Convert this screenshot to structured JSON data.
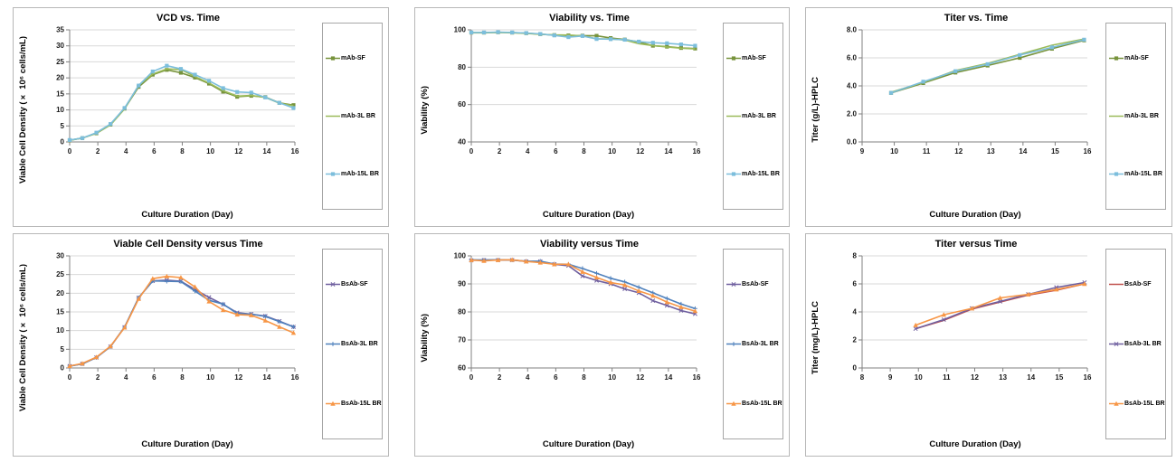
{
  "chart_data": [
    {
      "type": "line",
      "title": "VCD vs. Time",
      "xlabel": "Culture Duration (Day)",
      "ylabel": "Viable Cell Density (× 10⁶ cells/mL)",
      "x_axis": {
        "min": 0,
        "max": 16,
        "step": 2,
        "decimals": 0
      },
      "y_axis": {
        "min": 0,
        "max": 35,
        "step": 5,
        "decimals": 0
      },
      "grid": "horizontal",
      "legend_position": "right",
      "x": [
        0,
        0.9,
        1.9,
        2.9,
        3.9,
        4.9,
        5.9,
        6.9,
        7.9,
        8.9,
        9.9,
        10.9,
        11.9,
        12.9,
        13.9,
        14.9,
        15.9
      ],
      "series": [
        {
          "name": "mAb-SF",
          "color": "#77933C",
          "marker": "square",
          "values": [
            0.5,
            1.2,
            2.7,
            5.4,
            10.4,
            17.2,
            21.0,
            22.5,
            21.6,
            20.1,
            18.2,
            15.7,
            14.1,
            14.4,
            14.0,
            12.2,
            11.5
          ]
        },
        {
          "name": "mAb-3L BR",
          "color": "#9BBB59",
          "marker": "none",
          "values": [
            0.5,
            1.2,
            2.7,
            5.3,
            10.3,
            17.7,
            21.2,
            22.8,
            22.6,
            20.4,
            18.4,
            16.0,
            14.3,
            14.5,
            13.9,
            12.1,
            11.3
          ]
        },
        {
          "name": "mAb-15L BR",
          "color": "#7CBEDC",
          "marker": "square",
          "values": [
            0.6,
            1.2,
            2.9,
            5.6,
            10.6,
            17.6,
            22.0,
            23.8,
            22.8,
            21.0,
            19.1,
            16.8,
            15.6,
            15.4,
            13.9,
            12.2,
            10.6
          ]
        }
      ]
    },
    {
      "type": "line",
      "title": "Viability vs. Time",
      "xlabel": "Culture Duration (Day)",
      "ylabel": "Viability (%)",
      "x_axis": {
        "min": 0,
        "max": 16,
        "step": 2,
        "decimals": 0
      },
      "y_axis": {
        "min": 40,
        "max": 100,
        "step": 20,
        "decimals": 0
      },
      "grid": "horizontal",
      "legend_position": "right",
      "x": [
        0,
        0.9,
        1.9,
        2.9,
        3.9,
        4.9,
        5.9,
        6.9,
        7.9,
        8.9,
        9.9,
        10.9,
        11.9,
        12.9,
        13.9,
        14.9,
        15.9
      ],
      "series": [
        {
          "name": "mAb-SF",
          "color": "#77933C",
          "marker": "square",
          "values": [
            98.5,
            98.5,
            98.7,
            98.5,
            98.2,
            97.7,
            97.2,
            97.0,
            96.9,
            96.8,
            95.6,
            94.8,
            93.5,
            91.5,
            91.0,
            90.3,
            90.0
          ]
        },
        {
          "name": "mAb-3L BR",
          "color": "#9BBB59",
          "marker": "none",
          "values": [
            98.4,
            98.4,
            98.6,
            98.4,
            98.1,
            97.6,
            97.3,
            97.2,
            96.8,
            95.2,
            95.1,
            94.6,
            92.6,
            91.6,
            90.8,
            90.2,
            89.8
          ]
        },
        {
          "name": "mAb-15L BR",
          "color": "#7CBEDC",
          "marker": "square",
          "values": [
            98.6,
            98.6,
            98.8,
            98.6,
            98.3,
            97.8,
            97.0,
            96.1,
            96.7,
            95.1,
            95.0,
            94.7,
            93.7,
            93.1,
            92.8,
            92.2,
            91.5
          ]
        }
      ]
    },
    {
      "type": "line",
      "title": "Titer vs. Time",
      "xlabel": "Culture Duration (Day)",
      "ylabel": "Titer (g/L)-HPLC",
      "x_axis": {
        "min": 9,
        "max": 16,
        "step": 1,
        "decimals": 0
      },
      "y_axis": {
        "min": 0,
        "max": 8,
        "step": 2,
        "decimals": 1
      },
      "grid": "horizontal",
      "legend_position": "right",
      "x": [
        9.9,
        10.9,
        11.9,
        12.9,
        13.9,
        14.9,
        15.9
      ],
      "series": [
        {
          "name": "mAb-SF",
          "color": "#77933C",
          "marker": "square",
          "values": [
            3.5,
            4.2,
            4.95,
            5.45,
            6.0,
            6.65,
            7.25
          ]
        },
        {
          "name": "mAb-3L BR",
          "color": "#9BBB59",
          "marker": "none",
          "values": [
            3.55,
            4.25,
            5.1,
            5.6,
            6.25,
            6.9,
            7.35
          ]
        },
        {
          "name": "mAb-15L BR",
          "color": "#7CBEDC",
          "marker": "square",
          "values": [
            3.5,
            4.3,
            5.05,
            5.55,
            6.2,
            6.75,
            7.3
          ]
        }
      ]
    },
    {
      "type": "line",
      "title": "Viable Cell Density versus Time",
      "xlabel": "Culture Duration (Day)",
      "ylabel": "Viable Cell Density (× 10⁶ cells/mL)",
      "x_axis": {
        "min": 0,
        "max": 16,
        "step": 2,
        "decimals": 0
      },
      "y_axis": {
        "min": 0,
        "max": 30,
        "step": 5,
        "decimals": 0
      },
      "grid": "horizontal",
      "legend_position": "right",
      "x": [
        0,
        0.9,
        1.9,
        2.9,
        3.9,
        4.9,
        5.9,
        6.9,
        7.9,
        8.9,
        9.9,
        10.9,
        11.9,
        12.9,
        13.9,
        14.9,
        15.9
      ],
      "series": [
        {
          "name": "BsAb-SF",
          "color": "#6F5F9F",
          "marker": "x",
          "values": [
            0.5,
            1.1,
            2.8,
            5.7,
            10.9,
            18.8,
            23.3,
            23.5,
            23.2,
            21.0,
            18.9,
            17.0,
            14.8,
            14.4,
            13.9,
            12.5,
            11.0
          ]
        },
        {
          "name": "BsAb-3L BR",
          "color": "#4F81BD",
          "marker": "plus",
          "values": [
            0.5,
            1.1,
            2.8,
            5.7,
            10.9,
            18.8,
            23.3,
            23.2,
            23.1,
            20.6,
            18.1,
            17.1,
            14.6,
            14.4,
            13.8,
            12.4,
            11.0
          ]
        },
        {
          "name": "BsAb-15L BR",
          "color": "#F79646",
          "marker": "triangle",
          "values": [
            0.5,
            1.2,
            2.9,
            5.8,
            10.8,
            18.5,
            23.9,
            24.5,
            24.2,
            21.7,
            17.8,
            15.5,
            14.3,
            14.1,
            12.7,
            11.0,
            9.4
          ]
        }
      ]
    },
    {
      "type": "line",
      "title": "Viability versus Time",
      "xlabel": "Culture Duration (Day)",
      "ylabel": "Viability (%)",
      "x_axis": {
        "min": 0,
        "max": 16,
        "step": 2,
        "decimals": 0
      },
      "y_axis": {
        "min": 60,
        "max": 100,
        "step": 10,
        "decimals": 0
      },
      "grid": "horizontal",
      "legend_position": "right",
      "x": [
        0,
        0.9,
        1.9,
        2.9,
        3.9,
        4.9,
        5.9,
        6.9,
        7.9,
        8.9,
        9.9,
        10.9,
        11.9,
        12.9,
        13.9,
        14.9,
        15.9
      ],
      "series": [
        {
          "name": "BsAb-SF",
          "color": "#6F5F9F",
          "marker": "x",
          "values": [
            98.4,
            98.5,
            98.5,
            98.5,
            98.0,
            98.0,
            97.0,
            96.5,
            92.8,
            91.2,
            90.0,
            88.2,
            86.8,
            84.0,
            82.3,
            80.5,
            79.3
          ]
        },
        {
          "name": "BsAb-3L BR",
          "color": "#4F81BD",
          "marker": "plus",
          "values": [
            98.6,
            98.5,
            98.6,
            98.5,
            98.1,
            98.1,
            97.1,
            97.0,
            95.5,
            93.8,
            92.0,
            90.7,
            88.8,
            86.8,
            84.8,
            82.8,
            81.2
          ]
        },
        {
          "name": "BsAb-15L BR",
          "color": "#F79646",
          "marker": "triangle",
          "values": [
            98.5,
            98.2,
            98.5,
            98.6,
            98.0,
            97.6,
            97.0,
            97.0,
            94.3,
            92.3,
            90.5,
            89.6,
            87.5,
            85.8,
            83.5,
            81.7,
            80.3
          ]
        }
      ]
    },
    {
      "type": "line",
      "title": "Titer versus Time",
      "xlabel": "Culture Duration (Day)",
      "ylabel": "Titer (mg/L)-HPLC",
      "x_axis": {
        "min": 8,
        "max": 16,
        "step": 1,
        "decimals": 0
      },
      "y_axis": {
        "min": 0,
        "max": 8,
        "step": 2,
        "decimals": 0
      },
      "grid": "horizontal",
      "legend_position": "right",
      "x": [
        9.9,
        10.9,
        11.9,
        12.9,
        13.9,
        14.9,
        15.9
      ],
      "series": [
        {
          "name": "BsAb-SF",
          "color": "#C0504D",
          "marker": "none",
          "values": [
            2.8,
            3.4,
            4.2,
            4.7,
            5.2,
            5.55,
            6.0
          ]
        },
        {
          "name": "BsAb-3L BR",
          "color": "#6F5F9F",
          "marker": "x",
          "values": [
            2.8,
            3.45,
            4.25,
            4.75,
            5.25,
            5.75,
            6.1
          ]
        },
        {
          "name": "BsAb-15L BR",
          "color": "#F79646",
          "marker": "triangle",
          "values": [
            3.05,
            3.8,
            4.25,
            5.0,
            5.25,
            5.6,
            6.0
          ]
        }
      ]
    }
  ],
  "colors": {
    "grid_line": "#d9d9d9",
    "axis_line": "#808080",
    "panel_border": "#b7b7b7",
    "legend_border": "#a6a6a6"
  }
}
